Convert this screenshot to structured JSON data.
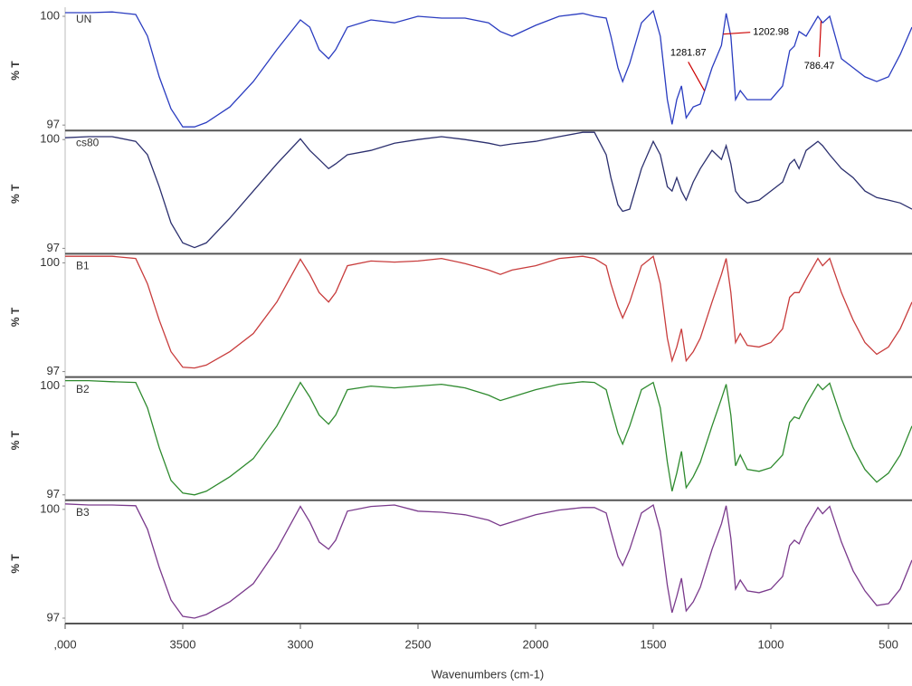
{
  "chart_data": {
    "type": "line",
    "stacked_panels": true,
    "xlabel": "Wavenumbers (cm-1)",
    "ylabel": "% T",
    "xlim": [
      4000,
      400
    ],
    "xticks": [
      {
        "value": 4000,
        "label": ",000"
      },
      3500,
      3000,
      2500,
      2000,
      1500,
      1000,
      500
    ],
    "ylim": [
      96.85,
      100.25
    ],
    "yticks": [
      97,
      100
    ],
    "x": [
      4000,
      3900,
      3800,
      3700,
      3650,
      3600,
      3550,
      3500,
      3450,
      3400,
      3300,
      3200,
      3100,
      3000,
      2960,
      2920,
      2880,
      2850,
      2800,
      2700,
      2600,
      2500,
      2400,
      2300,
      2200,
      2150,
      2100,
      2000,
      1900,
      1800,
      1750,
      1700,
      1680,
      1650,
      1630,
      1600,
      1550,
      1500,
      1470,
      1440,
      1420,
      1400,
      1380,
      1360,
      1330,
      1300,
      1250,
      1210,
      1190,
      1170,
      1150,
      1130,
      1100,
      1050,
      1000,
      950,
      920,
      900,
      880,
      850,
      800,
      780,
      750,
      700,
      650,
      600,
      550,
      500,
      450,
      400
    ],
    "series": [
      {
        "name": "UN",
        "color": "#2a3cc0",
        "values": [
          100.1,
          100.1,
          100.12,
          100.05,
          99.45,
          98.33,
          97.45,
          96.95,
          96.95,
          97.07,
          97.5,
          98.2,
          99.08,
          99.9,
          99.7,
          99.08,
          98.83,
          99.08,
          99.7,
          99.9,
          99.82,
          100,
          99.95,
          99.95,
          99.82,
          99.58,
          99.45,
          99.75,
          100,
          100.08,
          100,
          99.95,
          99.45,
          98.58,
          98.2,
          98.7,
          99.82,
          100.15,
          99.45,
          97.7,
          97.02,
          97.7,
          98.08,
          97.2,
          97.5,
          97.58,
          98.58,
          99.2,
          100.08,
          99.45,
          97.7,
          97.95,
          97.7,
          97.7,
          97.7,
          98.08,
          99.05,
          99.18,
          99.58,
          99.45,
          100,
          99.82,
          100,
          98.83,
          98.58,
          98.33,
          98.2,
          98.33,
          98.95,
          99.7
        ]
      },
      {
        "name": "cs80",
        "color": "#2b2f6e",
        "values": [
          100.05,
          100.08,
          100.08,
          99.95,
          99.58,
          98.7,
          97.7,
          97.15,
          97.02,
          97.15,
          97.83,
          98.58,
          99.33,
          100.02,
          99.7,
          99.45,
          99.2,
          99.33,
          99.58,
          99.7,
          99.9,
          100,
          100.08,
          100,
          99.9,
          99.83,
          99.88,
          99.95,
          100.08,
          100.2,
          100.2,
          99.58,
          98.95,
          98.2,
          98.02,
          98.08,
          99.2,
          99.95,
          99.58,
          98.7,
          98.58,
          98.95,
          98.58,
          98.33,
          98.83,
          99.2,
          99.7,
          99.45,
          99.83,
          99.33,
          98.58,
          98.4,
          98.25,
          98.33,
          98.58,
          98.83,
          99.33,
          99.45,
          99.2,
          99.7,
          99.95,
          99.83,
          99.58,
          99.2,
          98.95,
          98.58,
          98.4,
          98.33,
          98.25,
          98.08
        ]
      },
      {
        "name": "B1",
        "color": "#c83c3c",
        "values": [
          100.18,
          100.18,
          100.18,
          100.12,
          99.42,
          98.42,
          97.55,
          97.12,
          97.1,
          97.18,
          97.55,
          98.05,
          98.92,
          100.1,
          99.68,
          99.18,
          98.92,
          99.18,
          99.92,
          100.05,
          100.02,
          100.05,
          100.12,
          99.98,
          99.8,
          99.68,
          99.8,
          99.92,
          100.12,
          100.18,
          100.12,
          99.92,
          99.42,
          98.8,
          98.48,
          98.92,
          99.92,
          100.18,
          99.42,
          97.92,
          97.3,
          97.68,
          98.18,
          97.3,
          97.55,
          97.92,
          98.92,
          99.68,
          100.12,
          99.18,
          97.8,
          98.05,
          97.72,
          97.68,
          97.8,
          98.18,
          99.05,
          99.18,
          99.18,
          99.55,
          100.12,
          99.92,
          100.12,
          99.18,
          98.42,
          97.8,
          97.48,
          97.68,
          98.18,
          98.92
        ]
      },
      {
        "name": "B2",
        "color": "#2e8a2e",
        "values": [
          100.15,
          100.15,
          100.12,
          100.1,
          99.4,
          98.3,
          97.4,
          97.05,
          97.0,
          97.1,
          97.5,
          98.0,
          98.9,
          100.1,
          99.7,
          99.2,
          98.95,
          99.2,
          99.9,
          100.0,
          99.95,
          100.0,
          100.05,
          99.95,
          99.75,
          99.6,
          99.7,
          99.9,
          100.05,
          100.12,
          100.1,
          99.9,
          99.4,
          98.7,
          98.4,
          98.9,
          99.9,
          100.1,
          99.4,
          97.9,
          97.1,
          97.6,
          98.2,
          97.2,
          97.5,
          97.9,
          98.9,
          99.65,
          100.05,
          99.2,
          97.8,
          98.1,
          97.7,
          97.65,
          97.75,
          98.1,
          99.0,
          99.15,
          99.1,
          99.5,
          100.05,
          99.9,
          100.08,
          99.1,
          98.3,
          97.7,
          97.35,
          97.6,
          98.1,
          98.9
        ]
      },
      {
        "name": "B3",
        "color": "#7a3a8c",
        "values": [
          100.15,
          100.12,
          100.12,
          100.1,
          99.45,
          98.4,
          97.5,
          97.05,
          97.0,
          97.1,
          97.45,
          97.95,
          98.9,
          100.08,
          99.65,
          99.1,
          98.9,
          99.15,
          99.95,
          100.08,
          100.12,
          99.95,
          99.92,
          99.85,
          99.7,
          99.55,
          99.65,
          99.85,
          99.98,
          100.05,
          100.05,
          99.9,
          99.4,
          98.7,
          98.45,
          98.9,
          99.9,
          100.12,
          99.4,
          97.9,
          97.15,
          97.6,
          98.1,
          97.2,
          97.45,
          97.85,
          98.9,
          99.6,
          100.1,
          99.2,
          97.8,
          98.05,
          97.75,
          97.7,
          97.8,
          98.15,
          99.0,
          99.15,
          99.05,
          99.5,
          100.05,
          99.88,
          100.08,
          99.1,
          98.3,
          97.75,
          97.35,
          97.4,
          97.8,
          98.6
        ]
      }
    ],
    "annotations": [
      1281.87,
      1202.98,
      786.47
    ],
    "annotation_color": "#cc0000"
  }
}
